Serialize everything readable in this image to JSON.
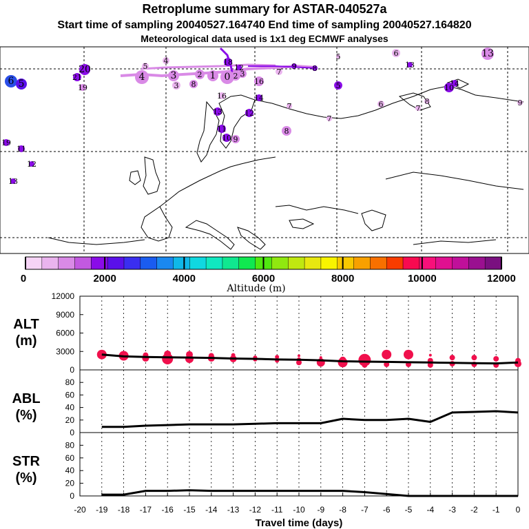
{
  "header": {
    "title": "Retroplume summary for ASTAR-040527a",
    "sampling_line": "Start time of sampling 20040527.164740     End time of sampling 20040527.164820",
    "met_line": "Meteorological data used is 1x1 deg ECMWF analyses"
  },
  "colorbar": {
    "colors": [
      "#f6d4f6",
      "#eab4ee",
      "#d98ae6",
      "#c259e0",
      "#8a0ce8",
      "#5a10ea",
      "#3a2ef0",
      "#1a5cf0",
      "#1a88f0",
      "#10b8e8",
      "#10d8e0",
      "#10e8c0",
      "#10e890",
      "#10e850",
      "#50e810",
      "#90e810",
      "#c0e810",
      "#e8e810",
      "#f8f400",
      "#f8c800",
      "#f8a000",
      "#f87000",
      "#f83c00",
      "#f80a50",
      "#f8107a",
      "#e01090",
      "#c0109a",
      "#9a1090",
      "#7a1080"
    ],
    "ticks": [
      "0",
      "2000",
      "4000",
      "6000",
      "8000",
      "10000",
      "12000"
    ],
    "label": "Altitude (m)"
  },
  "map": {
    "markers": [
      {
        "label": "6",
        "color": "#2a4ee8",
        "size": 9
      },
      {
        "label": "5",
        "color": "#5a10ea",
        "size": 8
      },
      {
        "label": "4",
        "color": "#eab4ee",
        "size": 5
      },
      {
        "label": "5",
        "color": "#eab4ee",
        "size": 5
      },
      {
        "label": "4",
        "color": "#d98ae6",
        "size": 10
      },
      {
        "label": "3",
        "color": "#d98ae6",
        "size": 8
      },
      {
        "label": "2",
        "color": "#d98ae6",
        "size": 7
      },
      {
        "label": "1",
        "color": "#d98ae6",
        "size": 8
      },
      {
        "label": "0",
        "color": "#d98ae6",
        "size": 10
      },
      {
        "label": "2",
        "color": "#d98ae6",
        "size": 7
      },
      {
        "label": "3",
        "color": "#d98ae6",
        "size": 6
      },
      {
        "label": "7",
        "color": "#eab4ee",
        "size": 5
      },
      {
        "label": "9",
        "color": "#8a0ce8",
        "size": 4
      },
      {
        "label": "8",
        "color": "#8a0ce8",
        "size": 4
      },
      {
        "label": "13",
        "color": "#d98ae6",
        "size": 9
      },
      {
        "label": "6",
        "color": "#eab4ee",
        "size": 6
      },
      {
        "label": "5",
        "color": "#eab4ee",
        "size": 3
      },
      {
        "label": "3",
        "color": "#eab4ee",
        "size": 6
      },
      {
        "label": "8",
        "color": "#d98ae6",
        "size": 6
      },
      {
        "label": "16",
        "color": "#d98ae6",
        "size": 7
      },
      {
        "label": "16",
        "color": "#eab4ee",
        "size": 5
      },
      {
        "label": "14",
        "color": "#8a0ce8",
        "size": 5
      },
      {
        "label": "13",
        "color": "#8a0ce8",
        "size": 6
      },
      {
        "label": "12",
        "color": "#8a0ce8",
        "size": 6
      },
      {
        "label": "11",
        "color": "#8a0ce8",
        "size": 6
      },
      {
        "label": "10",
        "color": "#8a0ce8",
        "size": 6
      },
      {
        "label": "9",
        "color": "#d98ae6",
        "size": 6
      },
      {
        "label": "8",
        "color": "#d98ae6",
        "size": 7
      },
      {
        "label": "7",
        "color": "#eab4ee",
        "size": 4
      },
      {
        "label": "7",
        "color": "#eab4ee",
        "size": 4
      },
      {
        "label": "5",
        "color": "#8a0ce8",
        "size": 6
      },
      {
        "label": "6",
        "color": "#eab4ee",
        "size": 5
      },
      {
        "label": "14",
        "color": "#8a0ce8",
        "size": 5
      },
      {
        "label": "10",
        "color": "#8a0ce8",
        "size": 7
      },
      {
        "label": "9",
        "color": "#eab4ee",
        "size": 4
      },
      {
        "label": "8",
        "color": "#eab4ee",
        "size": 4
      },
      {
        "label": "7",
        "color": "#eab4ee",
        "size": 4
      },
      {
        "label": "20",
        "color": "#8a0ce8",
        "size": 8
      },
      {
        "label": "21",
        "color": "#8a0ce8",
        "size": 6
      },
      {
        "label": "19",
        "color": "#d98ae6",
        "size": 5
      },
      {
        "label": "18",
        "color": "#8a0ce8",
        "size": 6
      },
      {
        "label": "19",
        "color": "#8a0ce8",
        "size": 5
      },
      {
        "label": "11",
        "color": "#8a0ce8",
        "size": 5
      },
      {
        "label": "12",
        "color": "#8a0ce8",
        "size": 4
      },
      {
        "label": "13",
        "color": "#8a0ce8",
        "size": 4
      },
      {
        "label": "13",
        "color": "#8a0ce8",
        "size": 4
      },
      {
        "label": "12",
        "color": "#8a0ce8",
        "size": 4
      }
    ]
  },
  "chart_data": [
    {
      "type": "line",
      "title": "ALT (m)",
      "panel_label_line1": "ALT",
      "panel_label_line2": "(m)",
      "xlabel": "Travel time (days)",
      "xlim": [
        -20,
        0
      ],
      "ylim": [
        0,
        12000
      ],
      "yticks": [
        "0",
        "3000",
        "6000",
        "9000",
        "12000"
      ],
      "x": [
        -19,
        -18,
        -17,
        -16,
        -15,
        -14,
        -13,
        -12,
        -11,
        -10,
        -9,
        -8,
        -7,
        -6,
        -5,
        -4,
        -3,
        -2,
        -1,
        0
      ],
      "values": [
        2500,
        2200,
        2100,
        2050,
        2000,
        1950,
        1850,
        1800,
        1700,
        1650,
        1550,
        1400,
        1350,
        1300,
        1250,
        1200,
        1150,
        1100,
        1050,
        1200
      ],
      "dot_color": "#f0104c",
      "dots": [
        {
          "x": -19,
          "y": 2500,
          "r": 7
        },
        {
          "x": -18,
          "y": 2300,
          "r": 7
        },
        {
          "x": -17,
          "y": 2400,
          "r": 4
        },
        {
          "x": -17,
          "y": 1900,
          "r": 5
        },
        {
          "x": -16,
          "y": 2600,
          "r": 5
        },
        {
          "x": -16,
          "y": 1800,
          "r": 8
        },
        {
          "x": -15,
          "y": 2500,
          "r": 5
        },
        {
          "x": -15,
          "y": 1800,
          "r": 6
        },
        {
          "x": -14,
          "y": 2300,
          "r": 4
        },
        {
          "x": -14,
          "y": 1900,
          "r": 5
        },
        {
          "x": -13,
          "y": 2400,
          "r": 3
        },
        {
          "x": -13,
          "y": 1800,
          "r": 5
        },
        {
          "x": -12,
          "y": 2000,
          "r": 3
        },
        {
          "x": -12,
          "y": 1700,
          "r": 3
        },
        {
          "x": -11,
          "y": 2100,
          "r": 3
        },
        {
          "x": -11,
          "y": 1500,
          "r": 3
        },
        {
          "x": -10,
          "y": 2300,
          "r": 2
        },
        {
          "x": -10,
          "y": 1700,
          "r": 3
        },
        {
          "x": -10,
          "y": 1200,
          "r": 4
        },
        {
          "x": -9,
          "y": 2000,
          "r": 2
        },
        {
          "x": -9,
          "y": 1600,
          "r": 3
        },
        {
          "x": -9,
          "y": 1200,
          "r": 6
        },
        {
          "x": -8,
          "y": 1600,
          "r": 5
        },
        {
          "x": -8,
          "y": 1200,
          "r": 7
        },
        {
          "x": -7,
          "y": 1600,
          "r": 9
        },
        {
          "x": -7,
          "y": 800,
          "r": 4
        },
        {
          "x": -6,
          "y": 2500,
          "r": 7
        },
        {
          "x": -6,
          "y": 900,
          "r": 4
        },
        {
          "x": -5,
          "y": 2500,
          "r": 7
        },
        {
          "x": -5,
          "y": 900,
          "r": 4
        },
        {
          "x": -4,
          "y": 2400,
          "r": 2
        },
        {
          "x": -4,
          "y": 1500,
          "r": 4
        },
        {
          "x": -4,
          "y": 800,
          "r": 4
        },
        {
          "x": -3,
          "y": 2000,
          "r": 4
        },
        {
          "x": -3,
          "y": 1000,
          "r": 4
        },
        {
          "x": -2,
          "y": 2000,
          "r": 4
        },
        {
          "x": -2,
          "y": 900,
          "r": 4
        },
        {
          "x": -1,
          "y": 1800,
          "r": 4
        },
        {
          "x": -1,
          "y": 800,
          "r": 4
        },
        {
          "x": 0,
          "y": 1500,
          "r": 4
        },
        {
          "x": 0,
          "y": 1000,
          "r": 5
        }
      ]
    },
    {
      "type": "line",
      "title": "ABL (%)",
      "panel_label_line1": "ABL",
      "panel_label_line2": "(%)",
      "xlim": [
        -20,
        0
      ],
      "ylim": [
        0,
        100
      ],
      "yticks": [
        "0",
        "20",
        "40",
        "60",
        "80"
      ],
      "x": [
        -19,
        -18,
        -17,
        -16,
        -15,
        -14,
        -13,
        -12,
        -11,
        -10,
        -9,
        -8,
        -7,
        -6,
        -5,
        -4,
        -3,
        -2,
        -1,
        0
      ],
      "values": [
        9,
        9,
        11,
        12,
        13,
        13,
        13,
        14,
        15,
        15,
        15,
        22,
        20,
        20,
        22,
        17,
        32,
        33,
        34,
        32
      ]
    },
    {
      "type": "line",
      "title": "STR (%)",
      "panel_label_line1": "STR",
      "panel_label_line2": "(%)",
      "xlim": [
        -20,
        0
      ],
      "ylim": [
        0,
        100
      ],
      "yticks": [
        "0",
        "20",
        "40",
        "60",
        "80"
      ],
      "x": [
        -19,
        -18,
        -17,
        -16,
        -15,
        -14,
        -13,
        -12,
        -11,
        -10,
        -9,
        -8,
        -7,
        -6,
        -5,
        -4,
        -3,
        -2,
        -1,
        0
      ],
      "values": [
        2,
        2,
        8,
        8,
        9,
        8,
        8,
        8,
        8,
        8,
        8,
        8,
        6,
        3,
        0,
        0,
        0,
        0,
        0,
        0
      ],
      "xticks": [
        "-20",
        "-19",
        "-18",
        "-17",
        "-16",
        "-15",
        "-14",
        "-13",
        "-12",
        "-11",
        "-10",
        "-9",
        "-8",
        "-7",
        "-6",
        "-5",
        "-4",
        "-3",
        "-2",
        "-1",
        "0"
      ]
    }
  ]
}
